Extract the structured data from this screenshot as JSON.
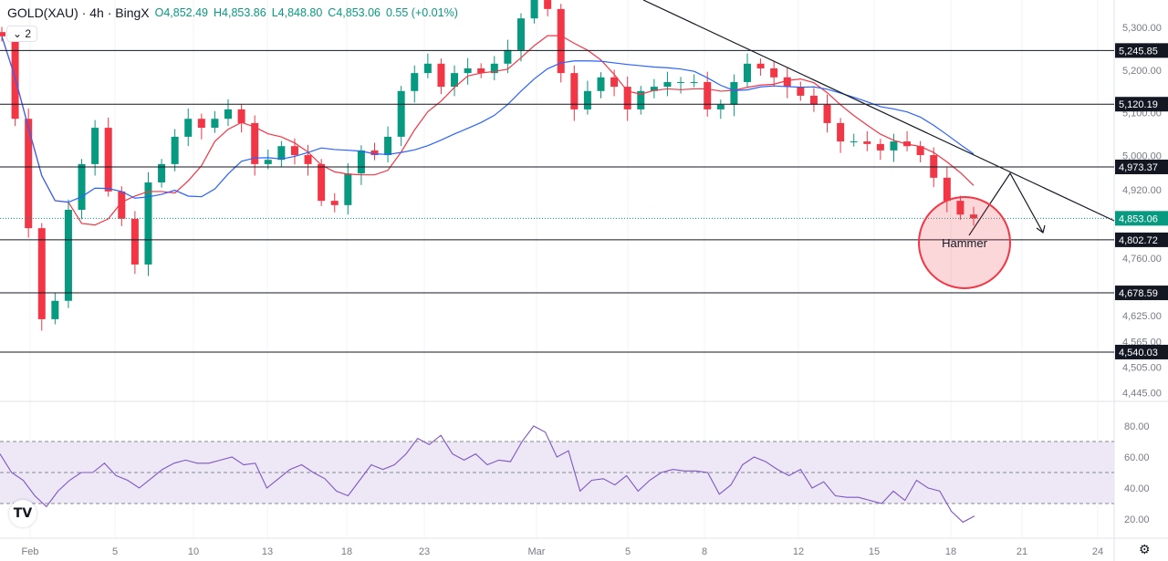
{
  "header": {
    "symbol": "GOLD(XAU) · 4h · BingX",
    "open": "O4,852.49",
    "high": "H4,853.86",
    "low": "L4,848.80",
    "close": "C4,853.06",
    "change": "0.55 (+0.01%)",
    "indicators_toggle": "⌄ 2"
  },
  "colors": {
    "up": "#089981",
    "down": "#f23645",
    "ma_fast": "#f23645",
    "ma_slow": "#2962ff",
    "rsi": "#7e57c2",
    "rsi_band": "#ede7f6"
  },
  "chart_data": {
    "type": "candlestick",
    "title": "GOLD(XAU) · 4h · BingX",
    "price_ticks": [
      "5,300.00",
      "5,200.00",
      "5,100.00",
      "5,000.00",
      "4,920.00",
      "4,760.00",
      "4,625.00",
      "4,565.00",
      "4,505.00",
      "4,445.00"
    ],
    "price_tick_values": [
      5300,
      5200,
      5100,
      5000,
      4920,
      4760,
      4625,
      4565,
      4505,
      4445
    ],
    "ylim": [
      4430,
      5310
    ],
    "x_labels": [
      "Feb",
      "5",
      "10",
      "13",
      "18",
      "23",
      "Mar",
      "5",
      "8",
      "12",
      "15",
      "18",
      "21",
      "24"
    ],
    "closes": [
      5279,
      5086,
      4830,
      4617,
      4660,
      4873,
      4980,
      5065,
      4916,
      4852,
      4745,
      4937,
      4980,
      5044,
      5086,
      5065,
      5086,
      5108,
      5076,
      4980,
      4990,
      5022,
      5001,
      4980,
      4894,
      4884,
      4958,
      5012,
      5001,
      5044,
      5151,
      5193,
      5215,
      5161,
      5193,
      5204,
      5193,
      5215,
      5247,
      5321,
      5364,
      5343,
      5193,
      5108,
      5151,
      5183,
      5161,
      5108,
      5151,
      5161,
      5172,
      5172,
      5172,
      5108,
      5119,
      5172,
      5215,
      5204,
      5183,
      5161,
      5140,
      5119,
      5076,
      5033,
      5033,
      5027,
      5012,
      5033,
      5022,
      5001,
      4948,
      4894,
      4862,
      4853
    ],
    "levels": [
      {
        "value": 5245.85,
        "label": "5,245.85"
      },
      {
        "value": 5120.19,
        "label": "5,120.19"
      },
      {
        "value": 4973.37,
        "label": "4,973.37"
      },
      {
        "value": 4802.72,
        "label": "4,802.72"
      },
      {
        "value": 4678.59,
        "label": "4,678.59"
      },
      {
        "value": 4540.03,
        "label": "4,540.03"
      }
    ],
    "last_price": {
      "value": 4853.06,
      "label": "4,853.06"
    },
    "annotation": "Hammer",
    "rsi": {
      "ticks": [
        "80.00",
        "60.00",
        "40.00",
        "20.00"
      ],
      "tick_values": [
        80,
        60,
        40,
        20
      ],
      "bands": [
        70,
        50,
        30
      ],
      "values": [
        62,
        50,
        45,
        35,
        28,
        38,
        45,
        50,
        50,
        56,
        48,
        45,
        40,
        46,
        52,
        56,
        58,
        56,
        56,
        58,
        60,
        55,
        56,
        40,
        46,
        52,
        55,
        50,
        46,
        38,
        35,
        45,
        55,
        52,
        55,
        62,
        72,
        68,
        74,
        62,
        58,
        62,
        55,
        58,
        57,
        70,
        80,
        76,
        60,
        64,
        38,
        45,
        46,
        42,
        48,
        38,
        45,
        50,
        52,
        51,
        51,
        50,
        36,
        42,
        55,
        60,
        57,
        52,
        48,
        52,
        40,
        44,
        35,
        34,
        34,
        32,
        30,
        38,
        32,
        45,
        40,
        38,
        25,
        18,
        22
      ]
    }
  },
  "footer": {
    "logo": "TV",
    "settings_icon": "⚙"
  }
}
